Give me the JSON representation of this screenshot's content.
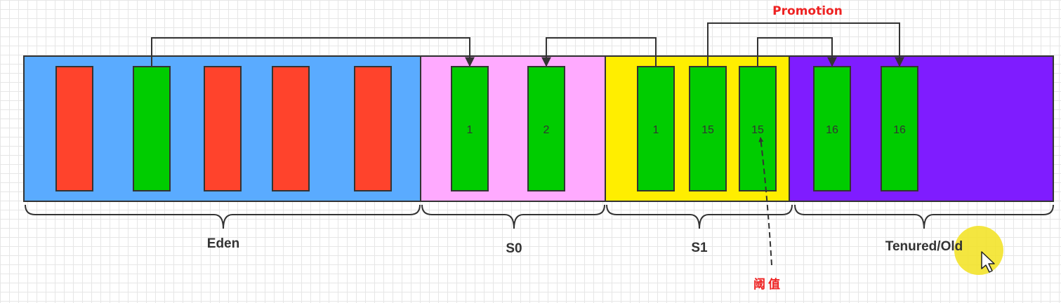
{
  "colors": {
    "eden": "#5aabff",
    "s0": "#ffaaff",
    "s1": "#ffee00",
    "tenured": "#7f1cff",
    "dead_object": "#ff432c",
    "live_object": "#00cc00",
    "annotation_red": "#ee2222"
  },
  "labels": {
    "eden": "Eden",
    "s0": "S0",
    "s1": "S1",
    "tenured": "Tenured/Old",
    "promotion": "Promotion",
    "threshold": "阈值"
  },
  "objects": {
    "eden": [
      {
        "state": "dead",
        "age": ""
      },
      {
        "state": "live",
        "age": ""
      },
      {
        "state": "dead",
        "age": ""
      },
      {
        "state": "dead",
        "age": ""
      },
      {
        "state": "dead",
        "age": ""
      }
    ],
    "s0": [
      {
        "state": "live",
        "age": "1"
      },
      {
        "state": "live",
        "age": "2"
      }
    ],
    "s1": [
      {
        "state": "live",
        "age": "1"
      },
      {
        "state": "live",
        "age": "15"
      },
      {
        "state": "live",
        "age": "15"
      }
    ],
    "tenured": [
      {
        "state": "live",
        "age": "16"
      },
      {
        "state": "live",
        "age": "16"
      }
    ]
  },
  "cursor": {
    "icon": "mouse-pointer-icon"
  }
}
